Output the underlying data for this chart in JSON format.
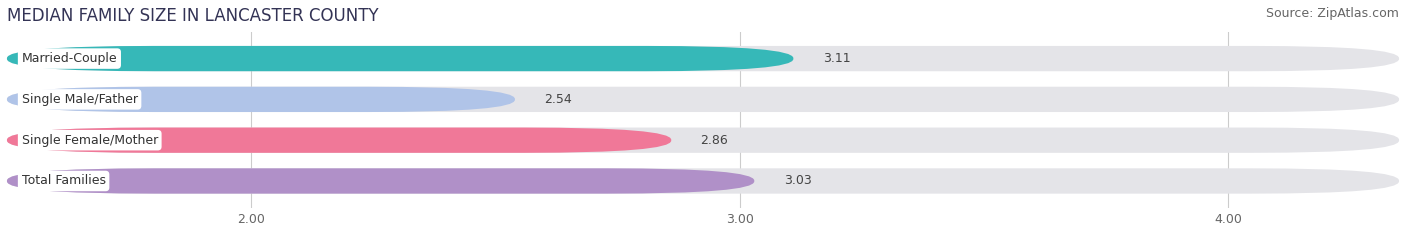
{
  "title": "MEDIAN FAMILY SIZE IN LANCASTER COUNTY",
  "source": "Source: ZipAtlas.com",
  "categories": [
    "Married-Couple",
    "Single Male/Father",
    "Single Female/Mother",
    "Total Families"
  ],
  "values": [
    3.11,
    2.54,
    2.86,
    3.03
  ],
  "bar_colors": [
    "#36b8b8",
    "#b0c4e8",
    "#f07898",
    "#b090c8"
  ],
  "background_color": "#ffffff",
  "track_color": "#e4e4e8",
  "xlim_min": 1.5,
  "xlim_max": 4.35,
  "data_min": 1.5,
  "xticks": [
    2.0,
    3.0,
    4.0
  ],
  "xtick_labels": [
    "2.00",
    "3.00",
    "4.00"
  ],
  "title_fontsize": 12,
  "label_fontsize": 9,
  "value_fontsize": 9,
  "source_fontsize": 9
}
